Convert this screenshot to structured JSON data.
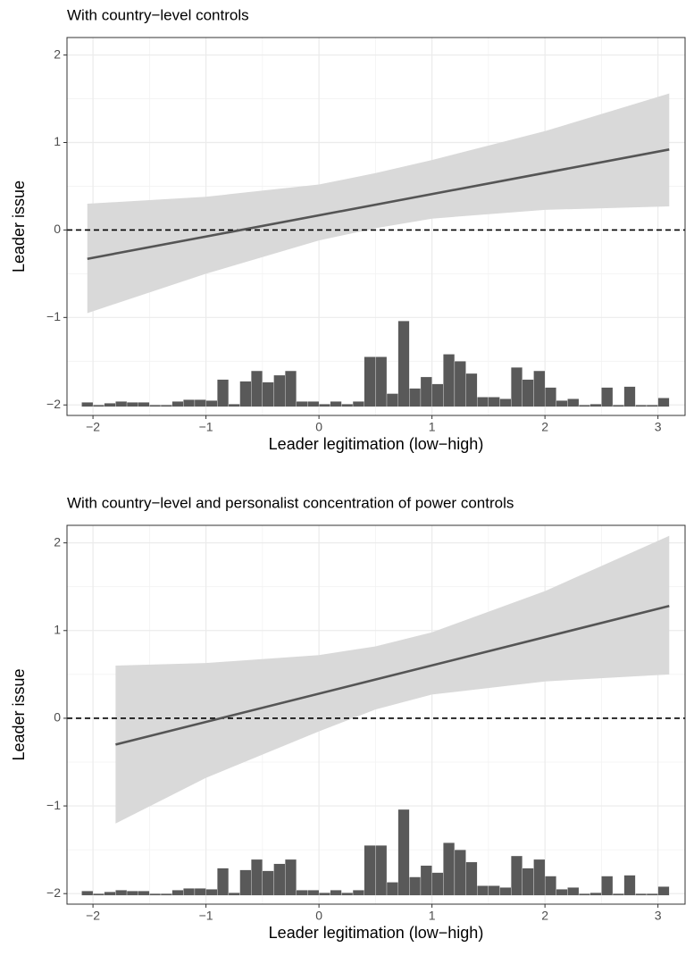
{
  "chart_data": [
    {
      "type": "line",
      "title": "With country−level controls",
      "x_label": "Leader legitimation (low−high)",
      "y_label": "Leader issue",
      "xlim": [
        -2.23,
        3.24
      ],
      "ylim": [
        -2.12,
        2.2
      ],
      "xticks": [
        {
          "value": -2,
          "label": "−2"
        },
        {
          "value": -1,
          "label": "−1"
        },
        0,
        1,
        2,
        3
      ],
      "yticks": [
        {
          "value": -2,
          "label": "−2"
        },
        {
          "value": -1,
          "label": "−1"
        },
        0,
        1,
        2
      ],
      "grid": true,
      "reference_line": 0,
      "line": {
        "color": "#555555",
        "x": [
          -2.05,
          3.1
        ],
        "values": [
          -0.33,
          0.92
        ]
      },
      "band": {
        "color": "#d9d9d9",
        "x": [
          -2.05,
          -1,
          0,
          0.5,
          1,
          2,
          3.1
        ],
        "upper": [
          0.3,
          0.38,
          0.52,
          0.65,
          0.8,
          1.13,
          1.56
        ],
        "lower": [
          -0.95,
          -0.5,
          -0.12,
          0.02,
          0.13,
          0.23,
          0.27
        ]
      },
      "histogram": {
        "color": "#595959",
        "base": -2.02,
        "bins": [
          -2.1,
          -2.0,
          -1.9,
          -1.8,
          -1.7,
          -1.6,
          -1.5,
          -1.4,
          -1.3,
          -1.2,
          -1.1,
          -1.0,
          -0.9,
          -0.8,
          -0.7,
          -0.6,
          -0.5,
          -0.4,
          -0.3,
          -0.2,
          -0.1,
          0,
          0.1,
          0.2,
          0.3,
          0.4,
          0.5,
          0.6,
          0.7,
          0.8,
          0.9,
          1.0,
          1.1,
          1.2,
          1.3,
          1.4,
          1.5,
          1.6,
          1.7,
          1.8,
          1.9,
          2.0,
          2.1,
          2.2,
          2.3,
          2.4,
          2.5,
          2.6,
          2.7,
          2.8,
          2.9,
          3.0,
          3.1
        ],
        "values": [
          -1.97,
          -2.0,
          -1.98,
          -1.96,
          -1.97,
          -1.97,
          -2.0,
          -2.0,
          -1.96,
          -1.94,
          -1.94,
          -1.95,
          -1.71,
          -1.99,
          -1.73,
          -1.61,
          -1.74,
          -1.66,
          -1.61,
          -1.96,
          -1.96,
          -1.99,
          -1.96,
          -1.99,
          -1.96,
          -1.45,
          -1.45,
          -1.87,
          -1.04,
          -1.81,
          -1.68,
          -1.76,
          -1.42,
          -1.5,
          -1.64,
          -1.91,
          -1.91,
          -1.93,
          -1.57,
          -1.71,
          -1.61,
          -1.8,
          -1.95,
          -1.93,
          -2.0,
          -1.99,
          -1.8,
          -2.0,
          -1.79,
          -2.0,
          -2.0,
          -1.92
        ]
      }
    },
    {
      "type": "line",
      "title": "With country−level and personalist concentration of power controls",
      "x_label": "Leader legitimation (low−high)",
      "y_label": "Leader issue",
      "xlim": [
        -2.23,
        3.24
      ],
      "ylim": [
        -2.12,
        2.2
      ],
      "xticks": [
        {
          "value": -2,
          "label": "−2"
        },
        {
          "value": -1,
          "label": "−1"
        },
        0,
        1,
        2,
        3
      ],
      "yticks": [
        {
          "value": -2,
          "label": "−2"
        },
        {
          "value": -1,
          "label": "−1"
        },
        0,
        1,
        2
      ],
      "grid": true,
      "reference_line": 0,
      "line": {
        "color": "#555555",
        "x": [
          -1.8,
          3.1
        ],
        "values": [
          -0.3,
          1.28
        ]
      },
      "band": {
        "color": "#d9d9d9",
        "x": [
          -1.8,
          -1,
          0,
          0.5,
          1,
          2,
          3.1
        ],
        "upper": [
          0.6,
          0.63,
          0.72,
          0.82,
          0.98,
          1.45,
          2.08
        ],
        "lower": [
          -1.2,
          -0.68,
          -0.15,
          0.1,
          0.27,
          0.42,
          0.5
        ]
      },
      "histogram": {
        "color": "#595959",
        "base": -2.02,
        "bins": [
          -2.1,
          -2.0,
          -1.9,
          -1.8,
          -1.7,
          -1.6,
          -1.5,
          -1.4,
          -1.3,
          -1.2,
          -1.1,
          -1.0,
          -0.9,
          -0.8,
          -0.7,
          -0.6,
          -0.5,
          -0.4,
          -0.3,
          -0.2,
          -0.1,
          0,
          0.1,
          0.2,
          0.3,
          0.4,
          0.5,
          0.6,
          0.7,
          0.8,
          0.9,
          1.0,
          1.1,
          1.2,
          1.3,
          1.4,
          1.5,
          1.6,
          1.7,
          1.8,
          1.9,
          2.0,
          2.1,
          2.2,
          2.3,
          2.4,
          2.5,
          2.6,
          2.7,
          2.8,
          2.9,
          3.0,
          3.1
        ],
        "values": [
          -1.97,
          -2.0,
          -1.98,
          -1.96,
          -1.97,
          -1.97,
          -2.0,
          -2.0,
          -1.96,
          -1.94,
          -1.94,
          -1.95,
          -1.71,
          -1.99,
          -1.73,
          -1.61,
          -1.74,
          -1.66,
          -1.61,
          -1.96,
          -1.96,
          -1.99,
          -1.96,
          -1.99,
          -1.96,
          -1.45,
          -1.45,
          -1.87,
          -1.04,
          -1.81,
          -1.68,
          -1.76,
          -1.42,
          -1.5,
          -1.64,
          -1.91,
          -1.91,
          -1.93,
          -1.57,
          -1.71,
          -1.61,
          -1.8,
          -1.95,
          -1.93,
          -2.0,
          -1.99,
          -1.8,
          -2.0,
          -1.79,
          -2.0,
          -2.0,
          -1.92
        ]
      }
    }
  ]
}
